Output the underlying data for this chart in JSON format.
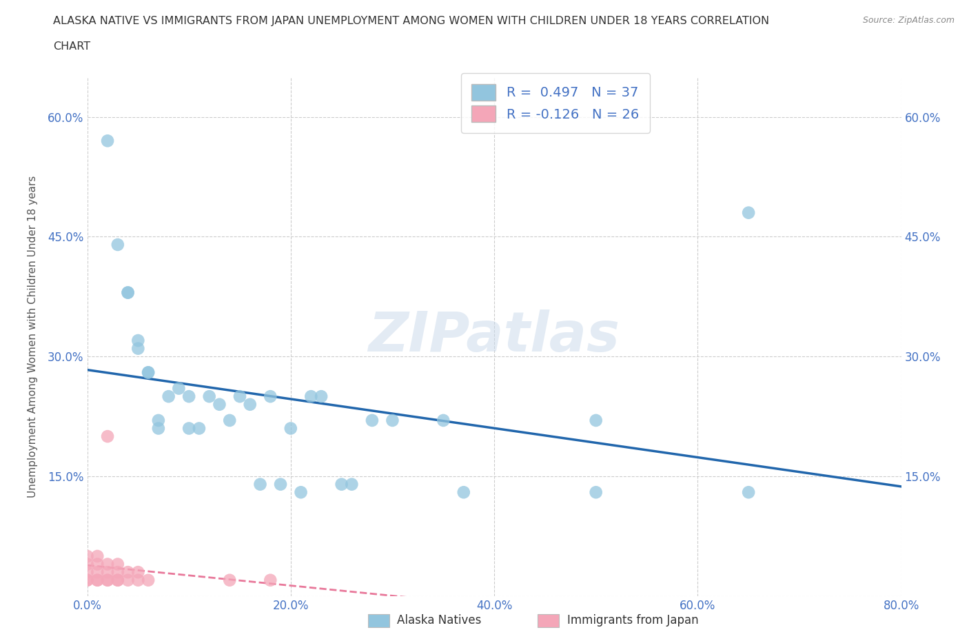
{
  "title_line1": "ALASKA NATIVE VS IMMIGRANTS FROM JAPAN UNEMPLOYMENT AMONG WOMEN WITH CHILDREN UNDER 18 YEARS CORRELATION",
  "title_line2": "CHART",
  "source": "Source: ZipAtlas.com",
  "ylabel": "Unemployment Among Women with Children Under 18 years",
  "xlim": [
    0.0,
    0.8
  ],
  "ylim": [
    0.0,
    0.65
  ],
  "xticks": [
    0.0,
    0.2,
    0.4,
    0.6,
    0.8
  ],
  "yticks": [
    0.0,
    0.15,
    0.3,
    0.45,
    0.6
  ],
  "xticklabels": [
    "0.0%",
    "20.0%",
    "40.0%",
    "60.0%",
    "80.0%"
  ],
  "yticklabels": [
    "",
    "15.0%",
    "30.0%",
    "45.0%",
    "60.0%"
  ],
  "background_color": "#ffffff",
  "grid_color": "#cccccc",
  "watermark": "ZIPatlas",
  "alaska_scatter_color": "#92c5de",
  "japan_scatter_color": "#f4a6b8",
  "alaska_line_color": "#2166ac",
  "japan_line_color": "#e8789a",
  "tick_label_color": "#4472c4",
  "title_color": "#333333",
  "source_color": "#888888",
  "R_alaska": 0.497,
  "N_alaska": 37,
  "R_japan": -0.126,
  "N_japan": 26,
  "alaska_points_x": [
    0.02,
    0.03,
    0.04,
    0.04,
    0.05,
    0.05,
    0.06,
    0.06,
    0.07,
    0.07,
    0.08,
    0.09,
    0.1,
    0.1,
    0.11,
    0.12,
    0.13,
    0.14,
    0.15,
    0.16,
    0.17,
    0.18,
    0.19,
    0.2,
    0.21,
    0.22,
    0.23,
    0.25,
    0.26,
    0.28,
    0.3,
    0.35,
    0.37,
    0.5,
    0.5,
    0.65,
    0.65
  ],
  "alaska_points_y": [
    0.57,
    0.44,
    0.38,
    0.38,
    0.31,
    0.32,
    0.28,
    0.28,
    0.22,
    0.21,
    0.25,
    0.26,
    0.25,
    0.21,
    0.21,
    0.25,
    0.24,
    0.22,
    0.25,
    0.24,
    0.14,
    0.25,
    0.14,
    0.21,
    0.13,
    0.25,
    0.25,
    0.14,
    0.14,
    0.22,
    0.22,
    0.22,
    0.13,
    0.13,
    0.22,
    0.48,
    0.13
  ],
  "japan_points_x": [
    0.0,
    0.0,
    0.0,
    0.0,
    0.0,
    0.01,
    0.01,
    0.01,
    0.01,
    0.01,
    0.02,
    0.02,
    0.02,
    0.02,
    0.02,
    0.03,
    0.03,
    0.03,
    0.03,
    0.04,
    0.04,
    0.05,
    0.05,
    0.06,
    0.14,
    0.18
  ],
  "japan_points_y": [
    0.02,
    0.02,
    0.03,
    0.04,
    0.05,
    0.02,
    0.02,
    0.03,
    0.04,
    0.05,
    0.02,
    0.02,
    0.03,
    0.04,
    0.2,
    0.02,
    0.02,
    0.03,
    0.04,
    0.02,
    0.03,
    0.02,
    0.03,
    0.02,
    0.02,
    0.02
  ]
}
